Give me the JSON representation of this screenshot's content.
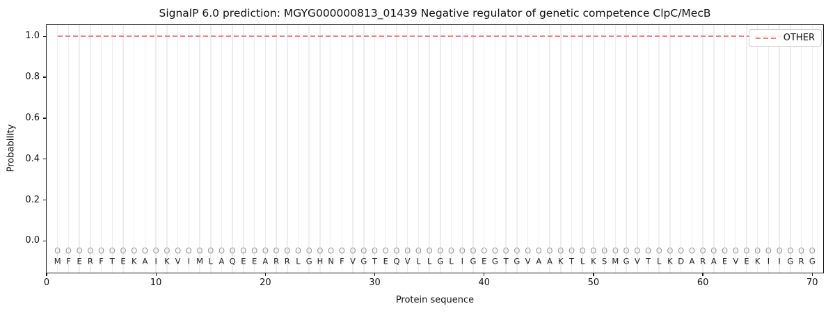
{
  "figure": {
    "title": "SignalP 6.0 prediction: MGYG000000813_01439 Negative regulator of genetic competence ClpC/MecB",
    "xlabel": "Protein sequence",
    "ylabel": "Probability",
    "legend": {
      "label": "OTHER",
      "line_color": "#f08080",
      "line_style": "dashed"
    }
  },
  "chart_data": {
    "type": "line",
    "title": "SignalP 6.0 prediction: MGYG000000813_01439 Negative regulator of genetic competence ClpC/MecB",
    "xlabel": "Protein sequence",
    "ylabel": "Probability",
    "xlim": [
      0,
      71
    ],
    "ylim": [
      -0.155,
      1.055
    ],
    "x_ticks": [
      0,
      10,
      20,
      30,
      40,
      50,
      60,
      70
    ],
    "y_ticks": [
      0.0,
      0.2,
      0.4,
      0.6,
      0.8,
      1.0
    ],
    "grid": "vertical-gridline-at-each-residue-position",
    "legend_position": "upper-right",
    "series": [
      {
        "name": "OTHER",
        "color": "#f08080",
        "line_style": "dashed",
        "x_start": 1,
        "x_end": 70,
        "constant_value": 1.0
      }
    ],
    "sequence": "MFERFTEKAIKVIMLAQEEARRLGHNFVGTEQVLLGLIGEGTGVAAKTLKSMGVTLKDARAEVEKIIGRG",
    "per_position_prediction": "O",
    "marker_row_y": -0.05,
    "sequence_row_y": -0.1
  },
  "colors": {
    "other_line": "#f08080",
    "gridline": "#ededed",
    "marker_text": "#9a9a9a",
    "sequence_text": "#222222",
    "spine": "#1a1a1a"
  }
}
